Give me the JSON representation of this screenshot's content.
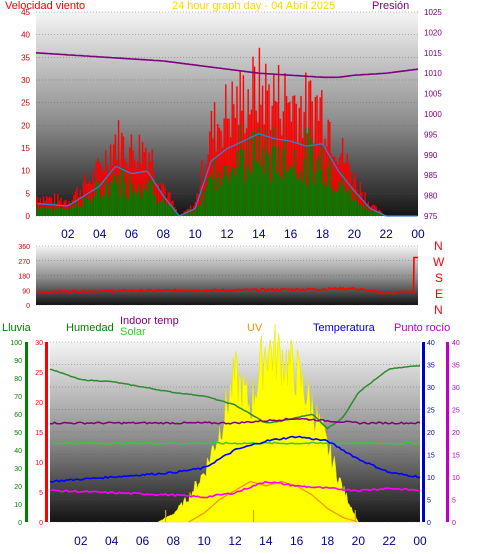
{
  "header": {
    "wind_label": "Velocidad viento",
    "title": "24 hour graph day - 04 Abril 2025",
    "pressure_label": "Presión"
  },
  "bottom_legend": {
    "rain": "Lluvia",
    "humidity": "Humedad",
    "indoor_temp": "Indoor temp",
    "solar": "Solar",
    "uv": "UV",
    "temperature": "Temperatura",
    "dew_point": "Punto rocío"
  },
  "direction_letters": [
    "N",
    "W",
    "S",
    "E",
    "N"
  ],
  "colors": {
    "wind_gust": "#ff0000",
    "wind_avg": "#008000",
    "wind_line": "#3a7bd5",
    "pressure": "#800080",
    "direction": "#ff0000",
    "humidity": "#2e8b2e",
    "indoor_temp": "#800080",
    "solar": "#ffff00",
    "uv": "#ff8c00",
    "temperature": "#0000ff",
    "dew_point": "#ff00ff",
    "indoor_line": "#33cc33",
    "rain_axis": "#008000"
  },
  "chart_data": [
    {
      "type": "area",
      "name": "wind_pressure",
      "x_ticks": [
        "02",
        "04",
        "06",
        "08",
        "10",
        "12",
        "14",
        "16",
        "18",
        "20",
        "22",
        "00"
      ],
      "wind_axis": {
        "ticks": [
          0,
          5,
          10,
          15,
          20,
          25,
          30,
          35,
          40,
          45
        ],
        "ylim": [
          0,
          45
        ]
      },
      "pressure_axis": {
        "ticks": [
          975,
          980,
          985,
          990,
          995,
          1000,
          1005,
          1010,
          1015,
          1020,
          1025
        ],
        "ylim": [
          975,
          1025
        ]
      },
      "series": [
        {
          "name": "Velocidad viento",
          "x": [
            0,
            2,
            4,
            5,
            6,
            7,
            8,
            9,
            10,
            11,
            12,
            13,
            14,
            15,
            16,
            17,
            18,
            19,
            20,
            21,
            22,
            24
          ],
          "values": [
            5,
            4,
            12,
            20,
            17,
            18,
            8,
            0,
            3,
            22,
            27,
            30,
            33,
            31,
            30,
            28,
            29,
            18,
            10,
            3,
            0,
            0
          ]
        },
        {
          "name": "Presión",
          "x": [
            0,
            2,
            4,
            6,
            8,
            10,
            12,
            14,
            16,
            18,
            19,
            20,
            22,
            24
          ],
          "values": [
            1015,
            1014.5,
            1014,
            1013.5,
            1013,
            1012,
            1011,
            1010,
            1009.5,
            1009,
            1009,
            1009.5,
            1010,
            1011
          ]
        }
      ]
    },
    {
      "type": "line",
      "name": "wind_direction",
      "y_ticks": [
        0,
        90,
        180,
        270,
        360
      ],
      "ylim": [
        0,
        360
      ],
      "series": [
        {
          "name": "direction",
          "x": [
            0,
            4,
            8,
            12,
            16,
            20,
            22,
            23,
            24
          ],
          "values": [
            80,
            85,
            88,
            90,
            95,
            100,
            70,
            80,
            290
          ]
        }
      ]
    },
    {
      "type": "line",
      "name": "temperature_humidity",
      "rain_axis": {
        "ticks": [
          0,
          10,
          20,
          30,
          40,
          50,
          60,
          70,
          80,
          90,
          100
        ],
        "ylim": [
          0,
          100
        ]
      },
      "humidity_axis": {
        "ticks": [
          0,
          5,
          10,
          15,
          20,
          25,
          30
        ],
        "ylim": [
          0,
          30
        ]
      },
      "temperature_axis": {
        "ticks": [
          0,
          5,
          10,
          15,
          20,
          25,
          30,
          35,
          40
        ],
        "ylim": [
          0,
          40
        ]
      },
      "series": [
        {
          "name": "Humedad",
          "x": [
            0,
            2,
            4,
            6,
            8,
            10,
            12,
            13,
            14,
            15,
            16,
            17,
            18,
            19,
            20,
            22,
            24
          ],
          "values": [
            85,
            79,
            78,
            75,
            72,
            70,
            65,
            60,
            55,
            56,
            58,
            60,
            52,
            58,
            72,
            85,
            87
          ]
        },
        {
          "name": "Indoor temp",
          "x": [
            0,
            4,
            8,
            12,
            16,
            20,
            24
          ],
          "values": [
            22,
            22,
            22,
            22,
            23,
            22,
            22
          ]
        },
        {
          "name": "Indoor line",
          "x": [
            0,
            24
          ],
          "values": [
            17.5,
            17.5
          ]
        },
        {
          "name": "Temperatura",
          "x": [
            0,
            4,
            8,
            10,
            12,
            14,
            16,
            18,
            20,
            22,
            24
          ],
          "values": [
            9,
            10,
            11,
            12,
            16,
            18,
            19,
            18,
            14,
            11,
            10
          ]
        },
        {
          "name": "Punto rocío",
          "x": [
            0,
            4,
            8,
            10,
            12,
            14,
            16,
            18,
            20,
            22,
            24
          ],
          "values": [
            7,
            6.5,
            6,
            5.5,
            6.5,
            9,
            8,
            7.5,
            7,
            7.5,
            7
          ]
        },
        {
          "name": "Solar",
          "x": [
            7,
            8,
            9,
            10,
            11,
            12,
            13,
            14,
            15,
            16,
            17,
            18,
            19,
            20
          ],
          "values": [
            0,
            2,
            6,
            12,
            22,
            35,
            28,
            42,
            40,
            36,
            28,
            18,
            8,
            0
          ]
        },
        {
          "name": "UV",
          "x": [
            9,
            10,
            11,
            12,
            13,
            14,
            15,
            16,
            17,
            18,
            19,
            20
          ],
          "values": [
            0,
            2,
            5,
            7,
            9,
            8,
            9,
            8,
            6,
            3,
            1,
            0
          ]
        }
      ]
    }
  ]
}
